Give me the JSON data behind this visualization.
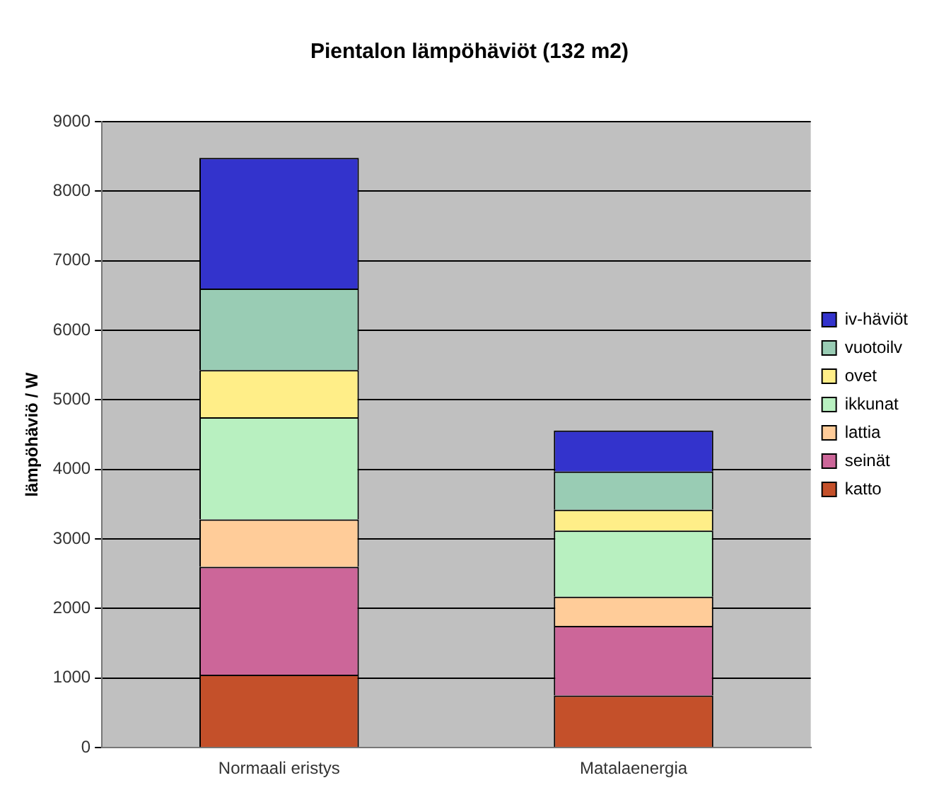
{
  "chart_data": {
    "type": "bar",
    "title": "Pientalon lämpöhäviöt (132 m2)",
    "ylabel": "lämpöhäviö / W",
    "categories": [
      "Normaali eristys",
      "Matalaenergia"
    ],
    "stacked": true,
    "series": [
      {
        "name": "katto",
        "color": "#c4502a",
        "values": [
          1050,
          750
        ]
      },
      {
        "name": "seinät",
        "color": "#cc6699",
        "values": [
          1550,
          1000
        ]
      },
      {
        "name": "lattia",
        "color": "#ffcc99",
        "values": [
          680,
          420
        ]
      },
      {
        "name": "ikkunat",
        "color": "#b8f0c0",
        "values": [
          1470,
          950
        ]
      },
      {
        "name": "ovet",
        "color": "#ffee88",
        "values": [
          680,
          300
        ]
      },
      {
        "name": "vuotoilv",
        "color": "#99ccb4",
        "values": [
          1170,
          550
        ]
      },
      {
        "name": "iv-häviöt",
        "color": "#3333cc",
        "values": [
          1880,
          590
        ]
      }
    ],
    "ylim": [
      0,
      9000
    ],
    "yticks": [
      0,
      1000,
      2000,
      3000,
      4000,
      5000,
      6000,
      7000,
      8000,
      9000
    ],
    "grid": "y",
    "legend": "right"
  }
}
